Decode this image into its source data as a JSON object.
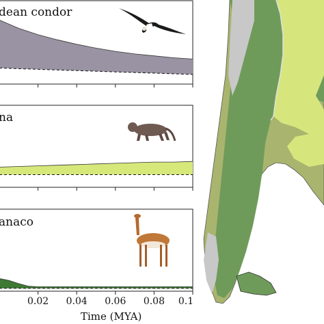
{
  "colors": {
    "condor_fill": "#9a93a3",
    "puma_fill": "#d6e87a",
    "guanaco_fill": "#3f7a34",
    "map_dark_green": "#6f9b5a",
    "map_olive": "#a9b46e",
    "map_light_green": "#d6e67d",
    "map_gray": "#c8c8c8"
  },
  "chart_data": [
    {
      "type": "area",
      "species_label": "dean condor",
      "icon": "condor-icon",
      "x": [
        0.0,
        0.01,
        0.02,
        0.03,
        0.04,
        0.05,
        0.06,
        0.07,
        0.08,
        0.09,
        0.1
      ],
      "series": [
        {
          "values": [
            1.0,
            0.87,
            0.77,
            0.69,
            0.62,
            0.56,
            0.51,
            0.47,
            0.44,
            0.41,
            0.39
          ]
        },
        {
          "style": "dashed",
          "values": [
            0.25,
            0.24,
            0.23,
            0.22,
            0.21,
            0.2,
            0.19,
            0.18,
            0.17,
            0.16,
            0.15
          ]
        }
      ],
      "ylim": [
        0,
        1.3
      ],
      "xlim": [
        0,
        0.1
      ]
    },
    {
      "type": "area",
      "species_label": "na",
      "icon": "puma-icon",
      "x": [
        0.0,
        0.01,
        0.02,
        0.03,
        0.04,
        0.05,
        0.06,
        0.07,
        0.08,
        0.09,
        0.1
      ],
      "series": [
        {
          "values": [
            0.32,
            0.33,
            0.34,
            0.35,
            0.36,
            0.37,
            0.38,
            0.39,
            0.4,
            0.4,
            0.41
          ]
        },
        {
          "style": "dashed",
          "values": [
            0.2,
            0.2,
            0.2,
            0.2,
            0.2,
            0.2,
            0.2,
            0.2,
            0.2,
            0.2,
            0.2
          ]
        }
      ],
      "ylim": [
        0,
        1.3
      ],
      "xlim": [
        0,
        0.1
      ]
    },
    {
      "type": "area",
      "species_label": "anaco",
      "icon": "guanaco-icon",
      "x": [
        0.0,
        0.005,
        0.01,
        0.015,
        0.02,
        0.03,
        0.04,
        0.05,
        0.06,
        0.07,
        0.08,
        0.09,
        0.1
      ],
      "series": [
        {
          "values": [
            0.2,
            0.17,
            0.12,
            0.08,
            0.07,
            0.07,
            0.07,
            0.07,
            0.07,
            0.07,
            0.07,
            0.07,
            0.07
          ]
        },
        {
          "style": "dashed",
          "values": [
            0.045,
            0.045,
            0.045,
            0.045,
            0.045,
            0.045,
            0.045,
            0.045,
            0.045,
            0.045,
            0.045,
            0.045,
            0.045
          ]
        }
      ],
      "ylim": [
        0,
        1.3
      ],
      "xlim": [
        0,
        0.1
      ]
    }
  ],
  "x_axis": {
    "ticks": [
      0.02,
      0.04,
      0.06,
      0.08,
      0.1
    ],
    "tick_labels": [
      "0.02",
      "0.04",
      "0.06",
      "0.08",
      "0.1"
    ],
    "label": "Time (MYA)"
  }
}
